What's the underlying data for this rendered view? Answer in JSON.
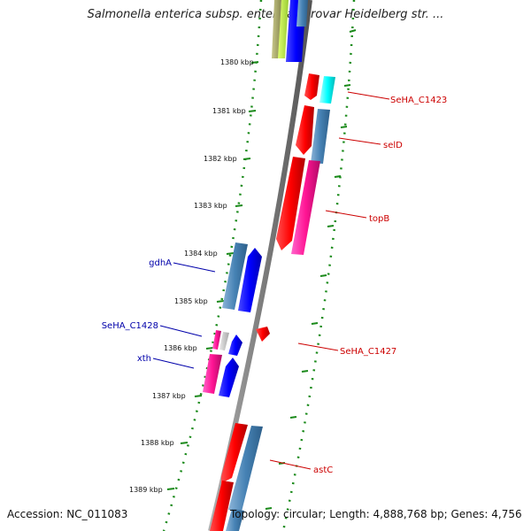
{
  "title": "Salmonella enterica subsp. enterica serovar Heidelberg str. ...",
  "footer": {
    "accession": "Accession: NC_011083",
    "summary": "Topology: circular; Length: 4,888,768 bp; Genes: 4,756"
  },
  "colors": {
    "forward_label": "#cc0000",
    "reverse_label": "#0000aa",
    "tick": "#1a8a1a",
    "backbone": "#7f7f7f"
  },
  "kbp_ticks": [
    "1380 kbp",
    "1381 kbp",
    "1382 kbp",
    "1383 kbp",
    "1384 kbp",
    "1385 kbp",
    "1386 kbp",
    "1387 kbp",
    "1388 kbp",
    "1389 kbp"
  ],
  "gene_labels": {
    "forward": [
      "SeHA_C1423",
      "selD",
      "topB",
      "SeHA_C1427",
      "astC"
    ],
    "reverse": [
      "gdhA",
      "SeHA_C1428",
      "xth"
    ]
  }
}
